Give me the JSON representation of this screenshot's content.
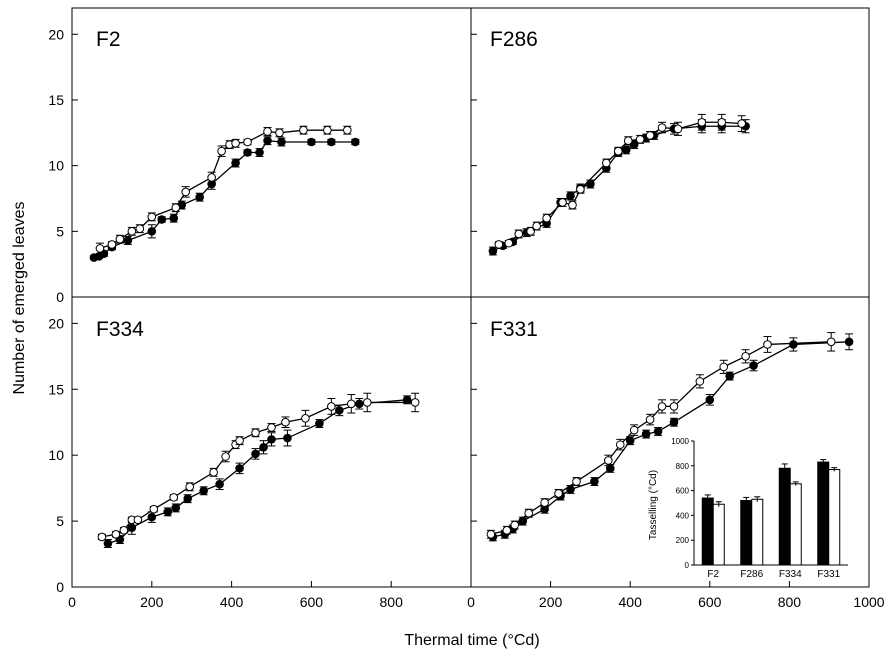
{
  "figure": {
    "ylabel": "Number of emerged leaves",
    "xlabel": "Thermal time (°Cd)"
  },
  "colors": {
    "axis": "#000000",
    "filled": "#000000",
    "open": "#ffffff"
  },
  "chart_data": [
    {
      "type": "line",
      "title": "F2",
      "xlim": [
        0,
        1000
      ],
      "ylim": [
        0,
        22
      ],
      "yticks": [
        0,
        5,
        10,
        15,
        20
      ],
      "series": [
        {
          "marker": "filled",
          "x": [
            55,
            68,
            80,
            100,
            140,
            200,
            225,
            255,
            275,
            320,
            350,
            410,
            440,
            470,
            490,
            525,
            600,
            650,
            710
          ],
          "y": [
            3.0,
            3.1,
            3.3,
            3.8,
            4.3,
            5.0,
            5.9,
            6.0,
            7.0,
            7.6,
            8.6,
            10.2,
            11.0,
            11.0,
            11.9,
            11.8,
            11.8,
            11.8,
            11.8
          ],
          "err": [
            0.15,
            0.15,
            0.2,
            0.2,
            0.3,
            0.5,
            0.2,
            0.3,
            0.3,
            0.3,
            0.4,
            0.3,
            0.2,
            0.3,
            0.3,
            0.3,
            0.2,
            0.2,
            0.2
          ]
        },
        {
          "marker": "open",
          "x": [
            70,
            100,
            120,
            150,
            170,
            200,
            260,
            285,
            350,
            375,
            395,
            410,
            440,
            490,
            520,
            580,
            640,
            690
          ],
          "y": [
            3.7,
            4.0,
            4.4,
            5.0,
            5.2,
            6.1,
            6.8,
            8.0,
            9.1,
            11.1,
            11.6,
            11.7,
            11.8,
            12.6,
            12.5,
            12.7,
            12.7,
            12.7
          ],
          "err": [
            0.4,
            0.2,
            0.3,
            0.3,
            0.3,
            0.3,
            0.3,
            0.4,
            0.4,
            0.4,
            0.3,
            0.3,
            0.2,
            0.3,
            0.3,
            0.3,
            0.3,
            0.3
          ]
        }
      ]
    },
    {
      "type": "line",
      "title": "F286",
      "xlim": [
        0,
        1000
      ],
      "ylim": [
        0,
        22
      ],
      "yticks": [
        0,
        5,
        10,
        15,
        20
      ],
      "series": [
        {
          "marker": "filled",
          "x": [
            55,
            80,
            105,
            140,
            190,
            225,
            250,
            275,
            300,
            340,
            370,
            390,
            410,
            440,
            460,
            510,
            580,
            630,
            690
          ],
          "y": [
            3.5,
            3.9,
            4.2,
            4.9,
            5.6,
            7.2,
            7.7,
            8.3,
            8.6,
            9.8,
            11.0,
            11.2,
            11.6,
            12.1,
            12.3,
            12.8,
            13.0,
            13.0,
            13.0
          ],
          "err": [
            0.3,
            0.2,
            0.2,
            0.3,
            0.3,
            0.3,
            0.3,
            0.3,
            0.3,
            0.3,
            0.3,
            0.3,
            0.3,
            0.3,
            0.3,
            0.4,
            0.5,
            0.5,
            0.5
          ]
        },
        {
          "marker": "open",
          "x": [
            70,
            95,
            120,
            150,
            165,
            190,
            230,
            255,
            275,
            340,
            370,
            395,
            425,
            450,
            480,
            520,
            580,
            630,
            680
          ],
          "y": [
            4.0,
            4.1,
            4.8,
            5.0,
            5.4,
            6.0,
            7.2,
            7.0,
            8.2,
            10.2,
            11.1,
            11.9,
            12.0,
            12.3,
            12.9,
            12.8,
            13.3,
            13.3,
            13.2
          ],
          "err": [
            0.2,
            0.2,
            0.3,
            0.3,
            0.3,
            0.3,
            0.3,
            0.3,
            0.3,
            0.3,
            0.3,
            0.3,
            0.3,
            0.3,
            0.4,
            0.5,
            0.6,
            0.6,
            0.6
          ]
        }
      ]
    },
    {
      "type": "line",
      "title": "F334",
      "xlim": [
        0,
        1000
      ],
      "ylim": [
        0,
        22
      ],
      "yticks": [
        0,
        5,
        10,
        15,
        20
      ],
      "series": [
        {
          "marker": "filled",
          "x": [
            90,
            120,
            150,
            200,
            240,
            260,
            290,
            330,
            370,
            420,
            460,
            480,
            500,
            540,
            620,
            670,
            720,
            840
          ],
          "y": [
            3.3,
            3.6,
            4.5,
            5.3,
            5.7,
            6.0,
            6.7,
            7.3,
            7.8,
            9.0,
            10.1,
            10.6,
            11.2,
            11.3,
            12.4,
            13.4,
            13.9,
            14.2
          ],
          "err": [
            0.3,
            0.3,
            0.5,
            0.4,
            0.3,
            0.3,
            0.3,
            0.3,
            0.4,
            0.4,
            0.4,
            0.5,
            0.5,
            0.6,
            0.3,
            0.4,
            0.4,
            0.3
          ]
        },
        {
          "marker": "open",
          "x": [
            75,
            110,
            130,
            150,
            165,
            205,
            255,
            295,
            355,
            385,
            410,
            420,
            460,
            500,
            535,
            585,
            650,
            700,
            740,
            860
          ],
          "y": [
            3.8,
            4.0,
            4.3,
            5.1,
            5.1,
            5.9,
            6.8,
            7.6,
            8.7,
            9.9,
            10.8,
            11.1,
            11.7,
            12.1,
            12.5,
            12.8,
            13.7,
            13.9,
            14.0,
            14.0
          ],
          "err": [
            0.2,
            0.2,
            0.2,
            0.2,
            0.2,
            0.2,
            0.2,
            0.3,
            0.3,
            0.4,
            0.3,
            0.3,
            0.3,
            0.3,
            0.4,
            0.6,
            0.6,
            0.7,
            0.7,
            0.7
          ]
        }
      ]
    },
    {
      "type": "line",
      "title": "F331",
      "xlim": [
        0,
        1000
      ],
      "ylim": [
        0,
        22
      ],
      "yticks": [
        0,
        5,
        10,
        15,
        20
      ],
      "series": [
        {
          "marker": "filled",
          "x": [
            55,
            85,
            105,
            130,
            185,
            225,
            250,
            310,
            350,
            400,
            440,
            470,
            510,
            600,
            650,
            710,
            810,
            950
          ],
          "y": [
            3.8,
            4.0,
            4.4,
            5.0,
            5.9,
            6.9,
            7.4,
            8.0,
            9.0,
            11.1,
            11.6,
            11.8,
            12.5,
            14.2,
            16.0,
            16.8,
            18.4,
            18.6
          ],
          "err": [
            0.3,
            0.3,
            0.3,
            0.3,
            0.3,
            0.3,
            0.3,
            0.3,
            0.3,
            0.3,
            0.3,
            0.3,
            0.3,
            0.4,
            0.3,
            0.4,
            0.5,
            0.6
          ]
        },
        {
          "marker": "open",
          "x": [
            50,
            90,
            110,
            145,
            185,
            220,
            265,
            345,
            375,
            410,
            450,
            480,
            510,
            575,
            635,
            690,
            745,
            905
          ],
          "y": [
            4.0,
            4.3,
            4.7,
            5.6,
            6.4,
            7.1,
            8.0,
            9.6,
            10.8,
            11.9,
            12.7,
            13.7,
            13.7,
            15.6,
            16.7,
            17.5,
            18.4,
            18.6
          ],
          "err": [
            0.3,
            0.3,
            0.3,
            0.3,
            0.3,
            0.3,
            0.3,
            0.4,
            0.4,
            0.4,
            0.4,
            0.5,
            0.5,
            0.5,
            0.5,
            0.5,
            0.6,
            0.7
          ]
        }
      ]
    },
    {
      "type": "bar",
      "ylabel": "Tasselling  (°Cd)",
      "ylim": [
        0,
        1000
      ],
      "yticks": [
        0,
        200,
        400,
        600,
        800,
        1000
      ],
      "categories": [
        "F2",
        "F286",
        "F334",
        "F331"
      ],
      "series": [
        {
          "fill": "filled",
          "values": [
            540,
            520,
            780,
            830
          ],
          "err": [
            25,
            25,
            35,
            20
          ]
        },
        {
          "fill": "open",
          "values": [
            490,
            530,
            655,
            770
          ],
          "err": [
            20,
            20,
            15,
            15
          ]
        }
      ]
    }
  ]
}
